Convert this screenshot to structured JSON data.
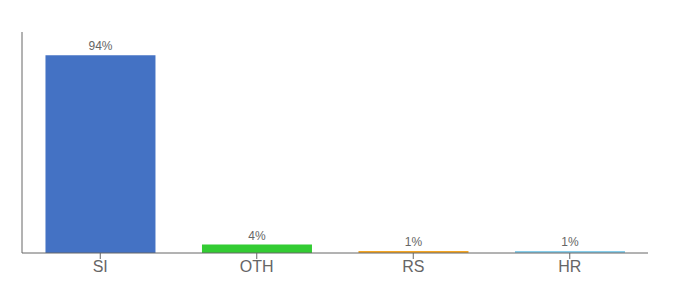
{
  "chart_data": {
    "type": "bar",
    "categories": [
      "SI",
      "OTH",
      "RS",
      "HR"
    ],
    "values": [
      94,
      4,
      1,
      1
    ],
    "value_labels": [
      "94%",
      "4%",
      "1%",
      "1%"
    ],
    "colors": [
      "#4472c4",
      "#33cc33",
      "#f5a623",
      "#87ceeb"
    ],
    "ylim": [
      0,
      105
    ],
    "grid": false,
    "data_labels": true,
    "tick_labels": "x"
  }
}
